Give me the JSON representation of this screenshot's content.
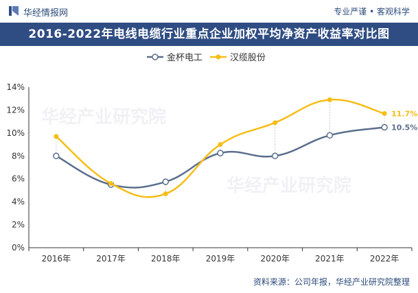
{
  "header": {
    "brand": "华经情报网",
    "slogan": "专业严谨 • 客观科学"
  },
  "title": "2016-2022年电线电缆行业重点企业加权平均净资产收益率对比图",
  "source": "资料来源：公司年报，华经产业研究院整理",
  "watermark": "华经产业研究院",
  "colors": {
    "title_bg": "#2f4d82",
    "series1": "#5a6e8c",
    "series2": "#f6bd16",
    "axis": "#333333",
    "grid": "#e6e6e6"
  },
  "chart_data": {
    "type": "line",
    "title": "2016-2022年电线电缆行业重点企业加权平均净资产收益率对比图",
    "categories": [
      "2016年",
      "2017年",
      "2018年",
      "2019年",
      "2020年",
      "2021年",
      "2022年"
    ],
    "ylim": [
      0,
      14
    ],
    "yticks": [
      "0%",
      "2%",
      "4%",
      "6%",
      "8%",
      "10%",
      "12%",
      "14%"
    ],
    "legend_position": "top-center",
    "grid": false,
    "series": [
      {
        "name": "金杯电工",
        "values": [
          8.0,
          5.5,
          5.75,
          8.25,
          8.0,
          9.8,
          10.5
        ],
        "end_label": "10.5%"
      },
      {
        "name": "汉缆股份",
        "values": [
          9.7,
          5.6,
          4.7,
          9.0,
          10.9,
          12.9,
          11.7
        ],
        "end_label": "11.7%"
      }
    ]
  }
}
